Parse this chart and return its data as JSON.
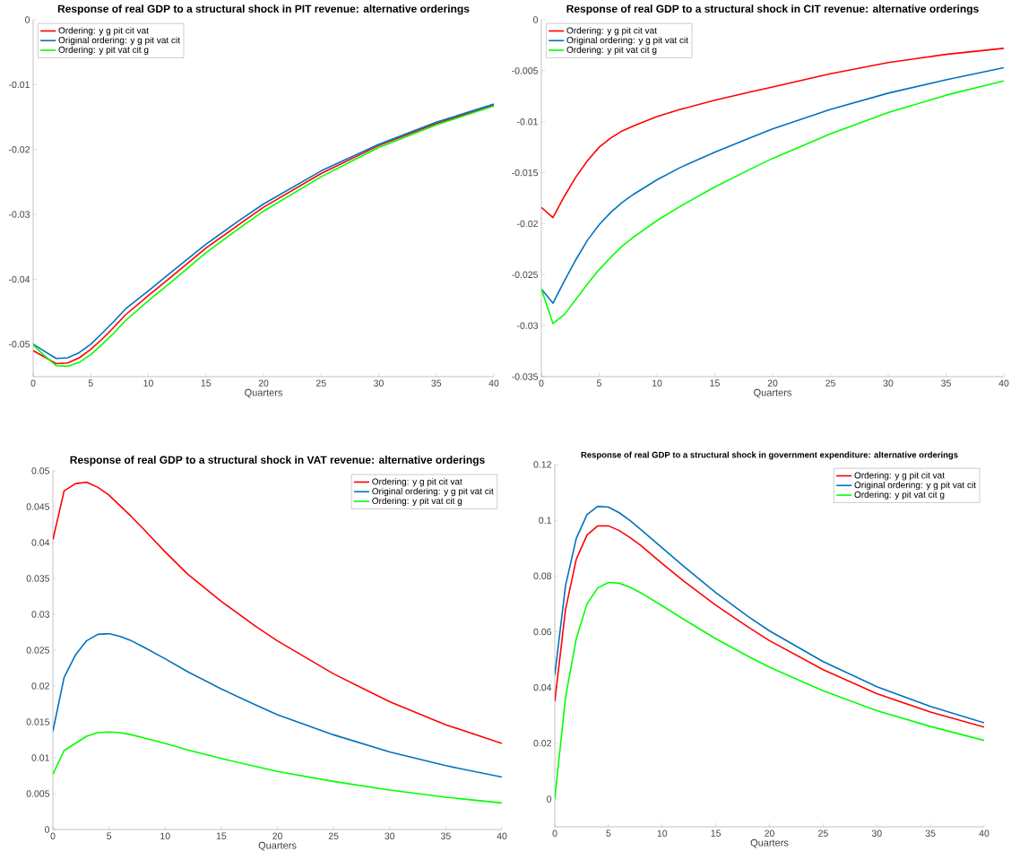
{
  "chart_data": [
    {
      "type": "line",
      "title": "Response of real GDP to a structural shock in PIT revenue: alternative orderings",
      "xlabel": "Quarters",
      "x": [
        0,
        1,
        2,
        3,
        4,
        5,
        6,
        7,
        8,
        10,
        12,
        15,
        18,
        20,
        25,
        30,
        35,
        40
      ],
      "xlim": [
        0,
        40
      ],
      "xticks": [
        0,
        5,
        10,
        15,
        20,
        25,
        30,
        35,
        40
      ],
      "ylim": [
        -0.055,
        0
      ],
      "yticks": [
        -0.05,
        -0.04,
        -0.03,
        -0.02,
        -0.01,
        0
      ],
      "legend": "top left",
      "series": [
        {
          "name": "Ordering: y g pit cit vat",
          "color": "#ff0000",
          "values": [
            -0.051,
            -0.052,
            -0.053,
            -0.0529,
            -0.0521,
            -0.0508,
            -0.0492,
            -0.0474,
            -0.0455,
            -0.0425,
            -0.0396,
            -0.0352,
            -0.0314,
            -0.0289,
            -0.0237,
            -0.0194,
            -0.016,
            -0.0132
          ]
        },
        {
          "name": "Original ordering: y g pit vat cit",
          "color": "#0072bd",
          "values": [
            -0.05,
            -0.0511,
            -0.0522,
            -0.0521,
            -0.0513,
            -0.05,
            -0.0483,
            -0.0465,
            -0.0446,
            -0.0418,
            -0.0389,
            -0.0346,
            -0.0308,
            -0.0284,
            -0.0233,
            -0.0192,
            -0.0158,
            -0.013
          ]
        },
        {
          "name": "Ordering: y pit vat cit g",
          "color": "#00ff00",
          "values": [
            -0.0501,
            -0.0518,
            -0.0533,
            -0.0534,
            -0.0528,
            -0.0516,
            -0.05,
            -0.0483,
            -0.0464,
            -0.0433,
            -0.0404,
            -0.0359,
            -0.032,
            -0.0295,
            -0.0242,
            -0.0197,
            -0.0162,
            -0.0133
          ]
        }
      ]
    },
    {
      "type": "line",
      "title": "Response of real GDP to a structural shock in CIT revenue: alternative orderings",
      "xlabel": "Quarters",
      "x": [
        0,
        1,
        2,
        3,
        4,
        5,
        6,
        7,
        8,
        10,
        12,
        15,
        18,
        20,
        25,
        30,
        35,
        40
      ],
      "xlim": [
        0,
        40
      ],
      "xticks": [
        0,
        5,
        10,
        15,
        20,
        25,
        30,
        35,
        40
      ],
      "ylim": [
        -0.035,
        0
      ],
      "yticks": [
        -0.035,
        -0.03,
        -0.025,
        -0.02,
        -0.015,
        -0.01,
        -0.005,
        0
      ],
      "legend": "top left",
      "series": [
        {
          "name": "Ordering: y g pit cit vat",
          "color": "#ff0000",
          "values": [
            -0.0184,
            -0.0194,
            -0.0173,
            -0.0154,
            -0.0138,
            -0.0125,
            -0.0116,
            -0.0109,
            -0.0104,
            -0.0095,
            -0.0088,
            -0.0079,
            -0.0071,
            -0.0066,
            -0.0053,
            -0.0042,
            -0.0034,
            -0.0028
          ]
        },
        {
          "name": "Original ordering: y g pit vat cit",
          "color": "#0072bd",
          "values": [
            -0.0264,
            -0.0278,
            -0.0256,
            -0.0235,
            -0.0216,
            -0.0201,
            -0.0189,
            -0.0179,
            -0.0171,
            -0.0157,
            -0.0145,
            -0.013,
            -0.0116,
            -0.0107,
            -0.0088,
            -0.0072,
            -0.0059,
            -0.0047
          ]
        },
        {
          "name": "Ordering: y pit vat cit g",
          "color": "#00ff00",
          "values": [
            -0.0264,
            -0.0298,
            -0.0289,
            -0.0274,
            -0.0259,
            -0.0245,
            -0.0233,
            -0.0222,
            -0.0213,
            -0.0197,
            -0.0183,
            -0.0164,
            -0.0147,
            -0.0136,
            -0.0112,
            -0.0091,
            -0.0074,
            -0.006
          ]
        }
      ]
    },
    {
      "type": "line",
      "title": "Response of real GDP to a structural shock in VAT revenue: alternative orderings",
      "xlabel": "Quarters",
      "x": [
        0,
        1,
        2,
        3,
        4,
        5,
        6,
        7,
        8,
        10,
        12,
        15,
        18,
        20,
        25,
        30,
        35,
        40
      ],
      "xlim": [
        0,
        40
      ],
      "xticks": [
        0,
        5,
        10,
        15,
        20,
        25,
        30,
        35,
        40
      ],
      "ylim": [
        0,
        0.05
      ],
      "yticks": [
        0,
        0.005,
        0.01,
        0.015,
        0.02,
        0.025,
        0.03,
        0.035,
        0.04,
        0.045,
        0.05
      ],
      "legend": "top right",
      "series": [
        {
          "name": "Ordering: y g pit cit vat",
          "color": "#ff0000",
          "values": [
            0.0404,
            0.0472,
            0.0482,
            0.0484,
            0.0477,
            0.0466,
            0.0451,
            0.0436,
            0.042,
            0.0387,
            0.0356,
            0.0318,
            0.0284,
            0.0263,
            0.0217,
            0.0178,
            0.0146,
            0.012
          ]
        },
        {
          "name": "Original ordering: y g pit vat cit",
          "color": "#0072bd",
          "values": [
            0.0137,
            0.0212,
            0.0243,
            0.0263,
            0.0272,
            0.0273,
            0.0269,
            0.0263,
            0.0255,
            0.0238,
            0.022,
            0.0196,
            0.0174,
            0.016,
            0.0132,
            0.0108,
            0.0089,
            0.0073
          ]
        },
        {
          "name": "Ordering: y pit vat cit g",
          "color": "#00ff00",
          "values": [
            0.0077,
            0.011,
            0.012,
            0.013,
            0.0135,
            0.0136,
            0.0135,
            0.0132,
            0.0128,
            0.012,
            0.0111,
            0.0099,
            0.0088,
            0.0081,
            0.0067,
            0.0055,
            0.0045,
            0.0037
          ]
        }
      ]
    },
    {
      "type": "line",
      "title": "Response of real GDP to a structural shock in government expenditure: alternative orderings",
      "xlabel": "Quarters",
      "x": [
        0,
        1,
        2,
        3,
        4,
        5,
        6,
        7,
        8,
        10,
        12,
        15,
        18,
        20,
        25,
        30,
        35,
        40
      ],
      "xlim": [
        0,
        40
      ],
      "xticks": [
        0,
        5,
        10,
        15,
        20,
        25,
        30,
        35,
        40
      ],
      "ylim": [
        -0.01,
        0.12
      ],
      "yticks": [
        0,
        0.02,
        0.04,
        0.06,
        0.08,
        0.1,
        0.12
      ],
      "legend": "top right",
      "series": [
        {
          "name": "Ordering: y g pit cit vat",
          "color": "#ff0000",
          "values": [
            0.035,
            0.068,
            0.086,
            0.0947,
            0.098,
            0.098,
            0.0963,
            0.0938,
            0.091,
            0.0845,
            0.0782,
            0.0695,
            0.0617,
            0.0568,
            0.0464,
            0.0378,
            0.0312,
            0.0258
          ]
        },
        {
          "name": "Original ordering: y g pit vat cit",
          "color": "#0072bd",
          "values": [
            0.0445,
            0.0765,
            0.0935,
            0.102,
            0.105,
            0.1047,
            0.1027,
            0.0999,
            0.0967,
            0.0901,
            0.0835,
            0.074,
            0.0655,
            0.0603,
            0.0493,
            0.0403,
            0.0332,
            0.0273
          ]
        },
        {
          "name": "Ordering: y pit vat cit g",
          "color": "#00ff00",
          "values": [
            0.0,
            0.0365,
            0.0575,
            0.07,
            0.0757,
            0.0777,
            0.0774,
            0.076,
            0.074,
            0.0693,
            0.0645,
            0.0575,
            0.0512,
            0.0473,
            0.0388,
            0.0317,
            0.026,
            0.021
          ]
        }
      ]
    }
  ]
}
